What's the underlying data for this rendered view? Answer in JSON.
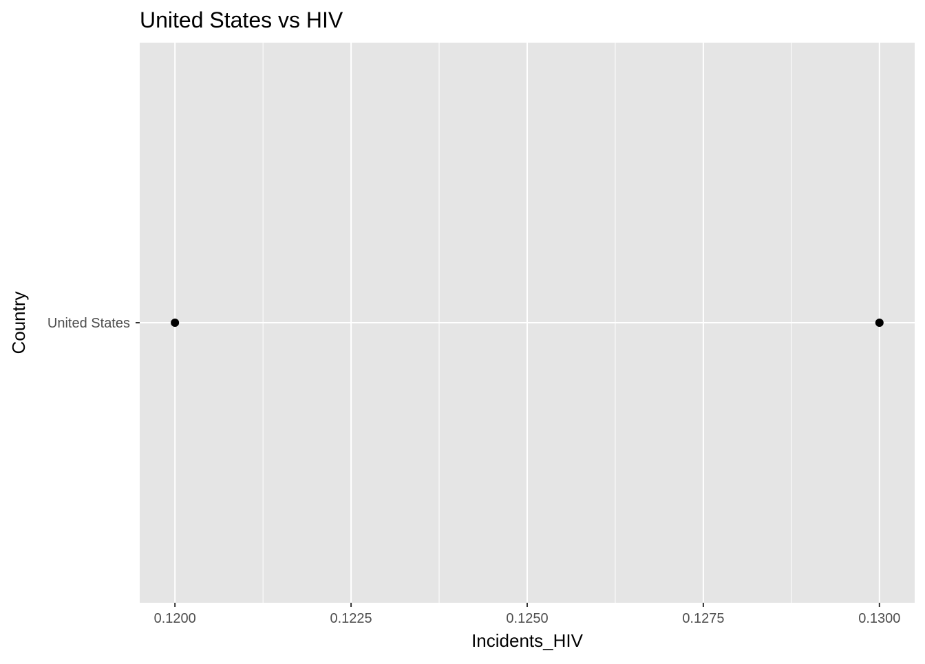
{
  "chart_data": {
    "type": "scatter",
    "title": "United States vs HIV",
    "xlabel": "Incidents_HIV",
    "ylabel": "Country",
    "x_ticks": [
      "0.1200",
      "0.1225",
      "0.1250",
      "0.1275",
      "0.1300"
    ],
    "x_tick_values": [
      0.12,
      0.1225,
      0.125,
      0.1275,
      0.13
    ],
    "xlim": [
      0.1195,
      0.1305
    ],
    "categories": [
      "United States"
    ],
    "points": [
      {
        "country": "United States",
        "x": 0.12
      },
      {
        "country": "United States",
        "x": 0.13
      }
    ],
    "grid": true,
    "legend": "none",
    "colors": {
      "panel_background": "#e5e5e5",
      "grid_line": "#ffffff",
      "point": "#000000",
      "tick_text": "#4d4d4d",
      "title_text": "#000000"
    }
  }
}
